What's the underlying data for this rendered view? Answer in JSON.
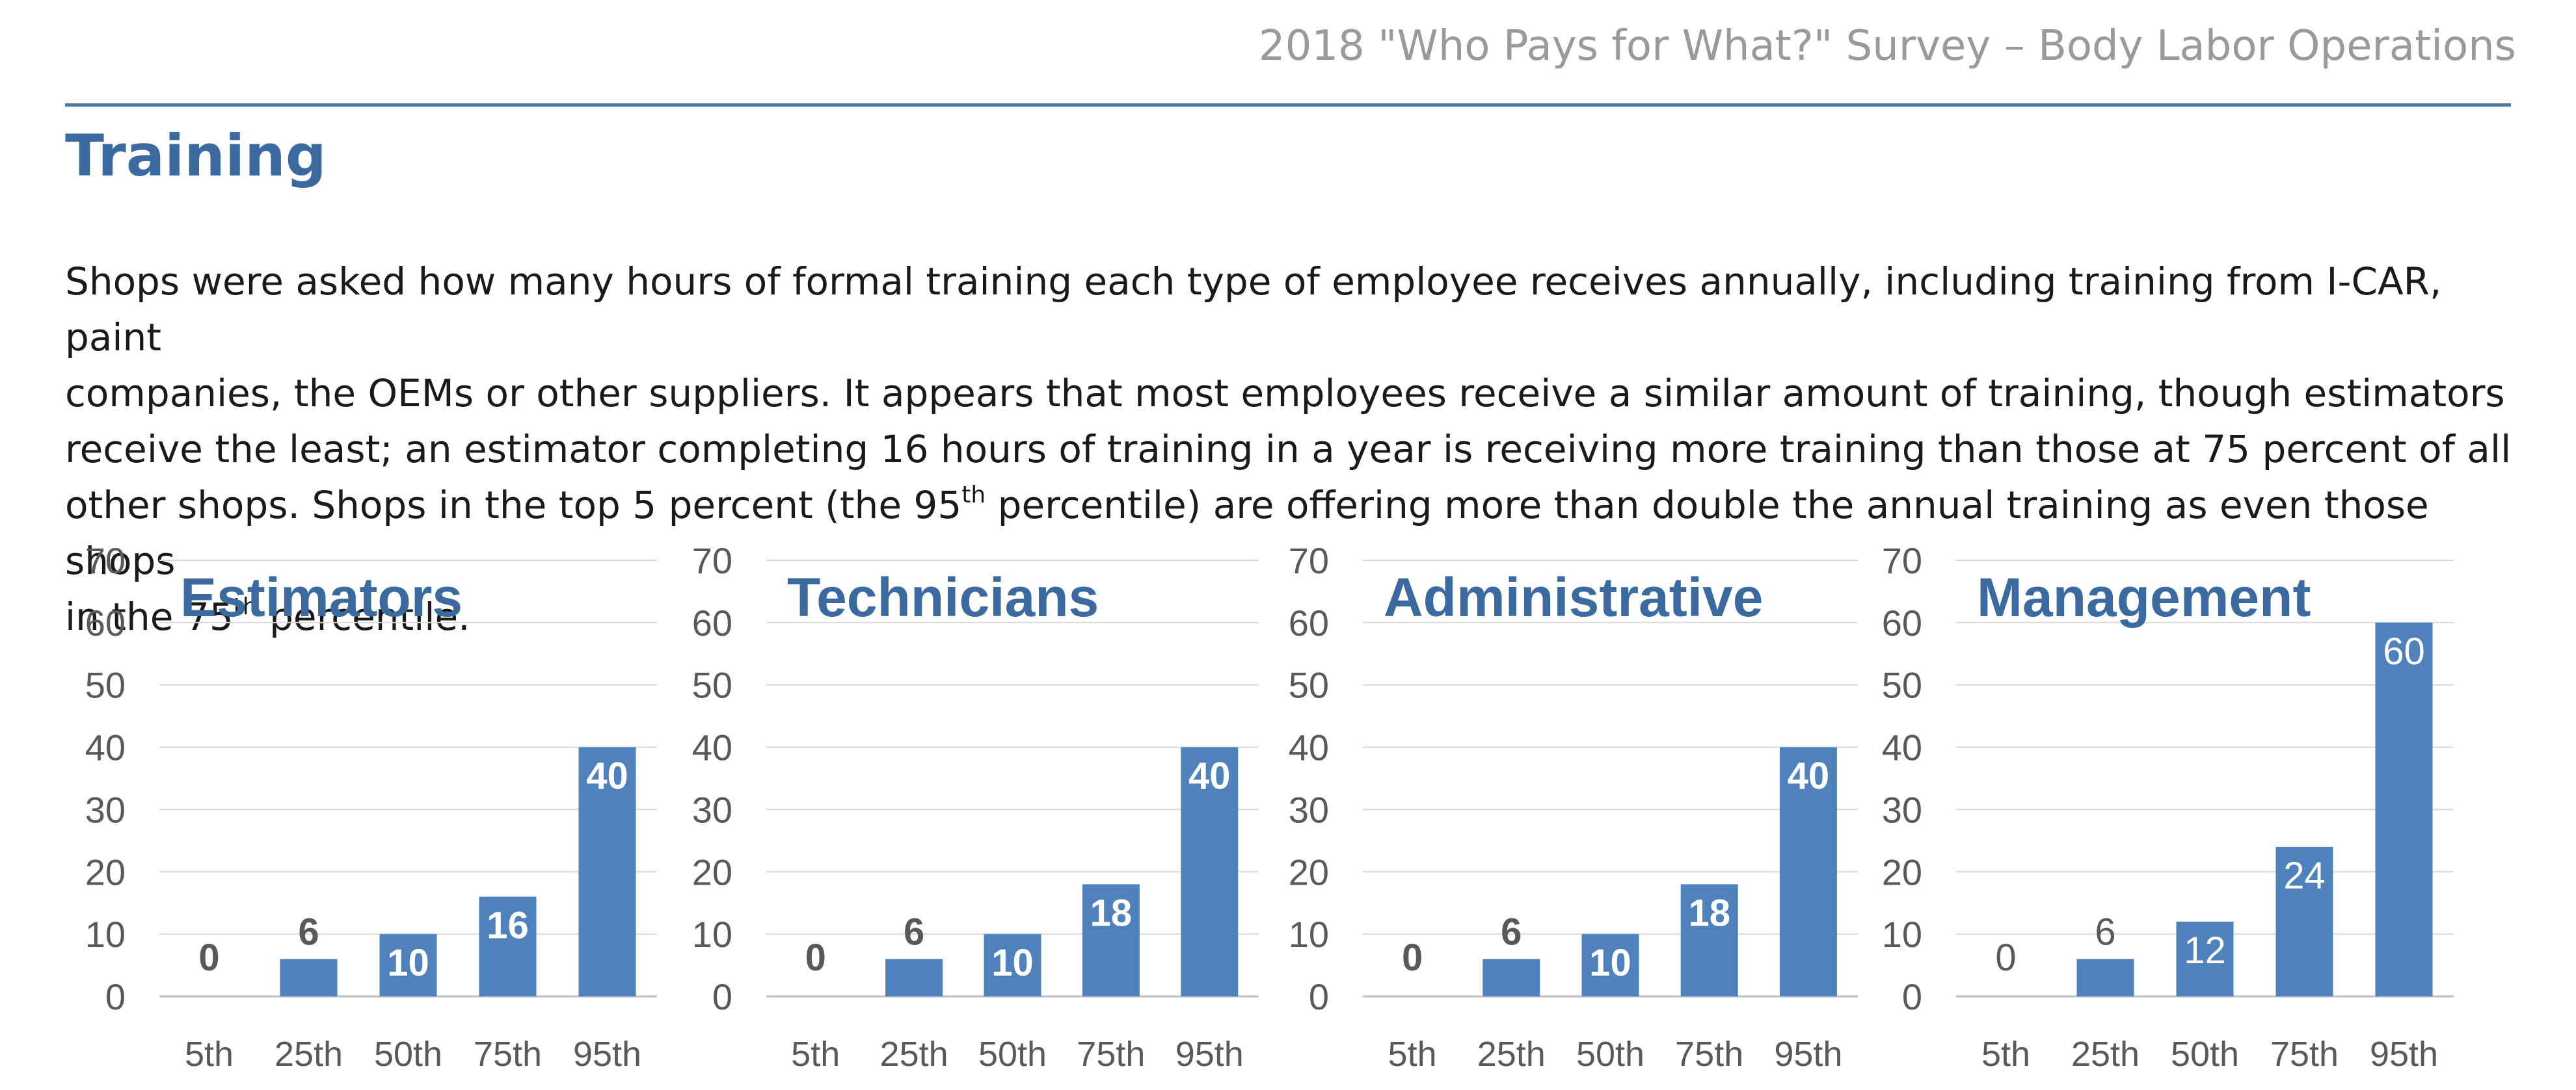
{
  "header": {
    "running_title": "2018 \"Who Pays for What?\" Survey – Body Labor Operations"
  },
  "section": {
    "title": "Training"
  },
  "intro": {
    "lines": [
      "Shops were asked how many hours of formal training each type of employee receives annually, including training from I-CAR, paint",
      "companies, the OEMs or other suppliers. It appears that most employees receive a similar amount of training, though estimators",
      "receive the least; an estimator completing 16 hours of training in a year is receiving more training than those at 75 percent of all"
    ],
    "line4_pre": "other shops. Shops in the top 5 percent (the 95",
    "line4_sup": "th",
    "line4_post": " percentile) are offering more than double the annual training as even those shops",
    "line5_pre": "in the 75",
    "line5_sup": "th",
    "line5_post": " percentile."
  },
  "colors": {
    "bar": "#4f81bd",
    "title": "#3a6aa0",
    "axis_text": "#595959",
    "grid": "#d9d9d9"
  },
  "chart_data": [
    {
      "type": "bar",
      "title": "Estimators",
      "categories": [
        "5th",
        "25th",
        "50th",
        "75th",
        "95th"
      ],
      "values": [
        0,
        6,
        10,
        16,
        40
      ],
      "labels": [
        "0",
        "6",
        "10",
        "16",
        "40"
      ],
      "yticks": [
        0,
        10,
        20,
        30,
        40,
        50,
        60,
        70
      ],
      "ylim": [
        0,
        70
      ],
      "label_style": "bold",
      "grid": true
    },
    {
      "type": "bar",
      "title": "Technicians",
      "categories": [
        "5th",
        "25th",
        "50th",
        "75th",
        "95th"
      ],
      "values": [
        0,
        6,
        10,
        18,
        40
      ],
      "labels": [
        "0",
        "6",
        "10",
        "18",
        "40"
      ],
      "yticks": [
        0,
        10,
        20,
        30,
        40,
        50,
        60,
        70
      ],
      "ylim": [
        0,
        70
      ],
      "label_style": "bold",
      "grid": true
    },
    {
      "type": "bar",
      "title": "Administrative",
      "categories": [
        "5th",
        "25th",
        "50th",
        "75th",
        "95th"
      ],
      "values": [
        0,
        6,
        10,
        18,
        40
      ],
      "labels": [
        "0",
        "6",
        "10",
        "18",
        "40"
      ],
      "yticks": [
        0,
        10,
        20,
        30,
        40,
        50,
        60,
        70
      ],
      "ylim": [
        0,
        70
      ],
      "label_style": "bold",
      "grid": true
    },
    {
      "type": "bar",
      "title": "Management",
      "categories": [
        "5th",
        "25th",
        "50th",
        "75th",
        "95th"
      ],
      "values": [
        0,
        6,
        12,
        24,
        60
      ],
      "labels": [
        "0",
        "6",
        "12",
        "24",
        "60"
      ],
      "yticks": [
        0,
        10,
        20,
        30,
        40,
        50,
        60,
        70
      ],
      "ylim": [
        0,
        70
      ],
      "label_style": "normal",
      "grid": true
    }
  ]
}
